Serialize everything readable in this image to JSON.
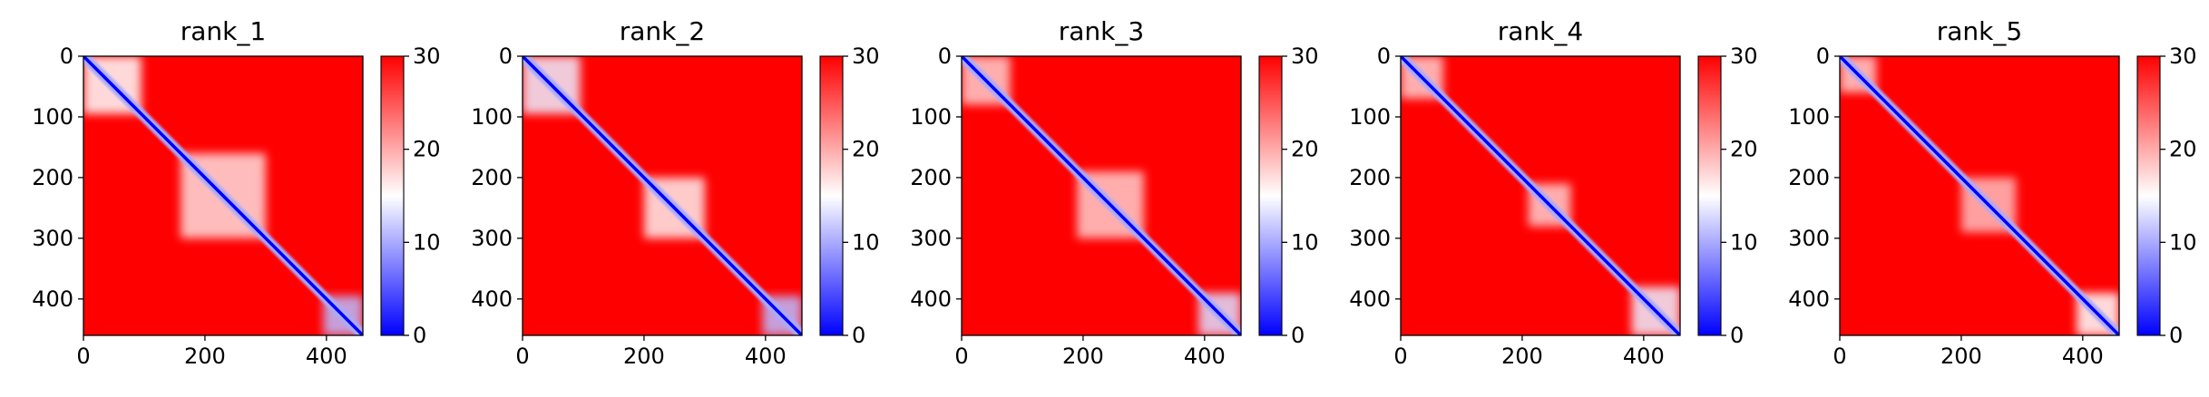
{
  "chart_data": [
    {
      "type": "heatmap",
      "title": "rank_1",
      "xlabel": "",
      "ylabel": "",
      "x_range": [
        0,
        460
      ],
      "y_range": [
        0,
        460
      ],
      "x_ticks": [
        0,
        200,
        400
      ],
      "y_ticks": [
        0,
        100,
        200,
        300,
        400
      ],
      "colorbar": {
        "range": [
          0,
          30
        ],
        "ticks": [
          0,
          10,
          20,
          30
        ],
        "colors": [
          "#0000ff",
          "#ffffff",
          "#ff0000"
        ]
      },
      "low_value_blocks": [
        {
          "start": 0,
          "end": 95,
          "value": 15
        },
        {
          "start": 160,
          "end": 300,
          "value": 17
        },
        {
          "start": 395,
          "end": 460,
          "value": 11
        }
      ]
    },
    {
      "type": "heatmap",
      "title": "rank_2",
      "xlabel": "",
      "ylabel": "",
      "x_range": [
        0,
        460
      ],
      "y_range": [
        0,
        460
      ],
      "x_ticks": [
        0,
        200,
        400
      ],
      "y_ticks": [
        0,
        100,
        200,
        300,
        400
      ],
      "colorbar": {
        "range": [
          0,
          30
        ],
        "ticks": [
          0,
          10,
          20,
          30
        ],
        "colors": [
          "#0000ff",
          "#ffffff",
          "#ff0000"
        ]
      },
      "low_value_blocks": [
        {
          "start": 0,
          "end": 95,
          "value": 14
        },
        {
          "start": 200,
          "end": 300,
          "value": 16
        },
        {
          "start": 395,
          "end": 460,
          "value": 11
        }
      ]
    },
    {
      "type": "heatmap",
      "title": "rank_3",
      "xlabel": "",
      "ylabel": "",
      "x_range": [
        0,
        460
      ],
      "y_range": [
        0,
        460
      ],
      "x_ticks": [
        0,
        200,
        400
      ],
      "y_ticks": [
        0,
        100,
        200,
        300,
        400
      ],
      "colorbar": {
        "range": [
          0,
          30
        ],
        "ticks": [
          0,
          10,
          20,
          30
        ],
        "colors": [
          "#0000ff",
          "#ffffff",
          "#ff0000"
        ]
      },
      "low_value_blocks": [
        {
          "start": 0,
          "end": 80,
          "value": 18
        },
        {
          "start": 190,
          "end": 300,
          "value": 18
        },
        {
          "start": 390,
          "end": 460,
          "value": 13
        }
      ]
    },
    {
      "type": "heatmap",
      "title": "rank_4",
      "xlabel": "",
      "ylabel": "",
      "x_range": [
        0,
        460
      ],
      "y_range": [
        0,
        460
      ],
      "x_ticks": [
        0,
        200,
        400
      ],
      "y_ticks": [
        0,
        100,
        200,
        300,
        400
      ],
      "colorbar": {
        "range": [
          0,
          30
        ],
        "ticks": [
          0,
          10,
          20,
          30
        ],
        "colors": [
          "#0000ff",
          "#ffffff",
          "#ff0000"
        ]
      },
      "low_value_blocks": [
        {
          "start": 0,
          "end": 70,
          "value": 18
        },
        {
          "start": 210,
          "end": 280,
          "value": 18
        },
        {
          "start": 380,
          "end": 460,
          "value": 14
        }
      ]
    },
    {
      "type": "heatmap",
      "title": "rank_5",
      "xlabel": "",
      "ylabel": "",
      "x_range": [
        0,
        460
      ],
      "y_range": [
        0,
        460
      ],
      "x_ticks": [
        0,
        200,
        400
      ],
      "y_ticks": [
        0,
        100,
        200,
        300,
        400
      ],
      "colorbar": {
        "range": [
          0,
          30
        ],
        "ticks": [
          0,
          10,
          20,
          30
        ],
        "colors": [
          "#0000ff",
          "#ffffff",
          "#ff0000"
        ]
      },
      "low_value_blocks": [
        {
          "start": 0,
          "end": 60,
          "value": 18
        },
        {
          "start": 200,
          "end": 290,
          "value": 19
        },
        {
          "start": 390,
          "end": 460,
          "value": 15
        }
      ]
    }
  ]
}
